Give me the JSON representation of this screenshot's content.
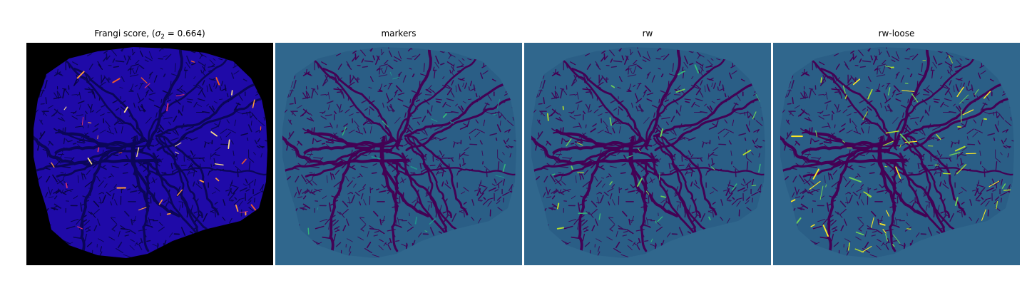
{
  "figure": {
    "panels": [
      {
        "id": "frangi",
        "title_prefix": "Frangi score, (",
        "title_sigma": "σ",
        "title_sub": "2",
        "title_suffix": " = 0.664)",
        "background": "#000000",
        "blob_fill": "#1f0aa8",
        "vessel_colors": [
          "#0b0658",
          "#090445"
        ],
        "highlight_colors": [
          "#ff9a3c",
          "#d6336c",
          "#ffe08a",
          "#f05a28"
        ]
      },
      {
        "id": "markers",
        "title": "markers",
        "background": "#30678d",
        "blob_fill": "#2a5e86",
        "vessel_colors": [
          "#440154",
          "#3b0f5a"
        ],
        "highlight_colors": [
          "#35b779",
          "#21918c"
        ]
      },
      {
        "id": "rw",
        "title": "rw",
        "background": "#30678d",
        "blob_fill": "#2a5e86",
        "vessel_colors": [
          "#440154",
          "#3b0f5a"
        ],
        "highlight_colors": [
          "#b5de2b",
          "#6ece58",
          "#35b779"
        ]
      },
      {
        "id": "rw-loose",
        "title": "rw-loose",
        "background": "#30678d",
        "blob_fill": "#2a5e86",
        "vessel_colors": [
          "#440154",
          "#3b0f5a"
        ],
        "highlight_colors": [
          "#fde725",
          "#b5de2b",
          "#6ece58"
        ]
      }
    ]
  }
}
